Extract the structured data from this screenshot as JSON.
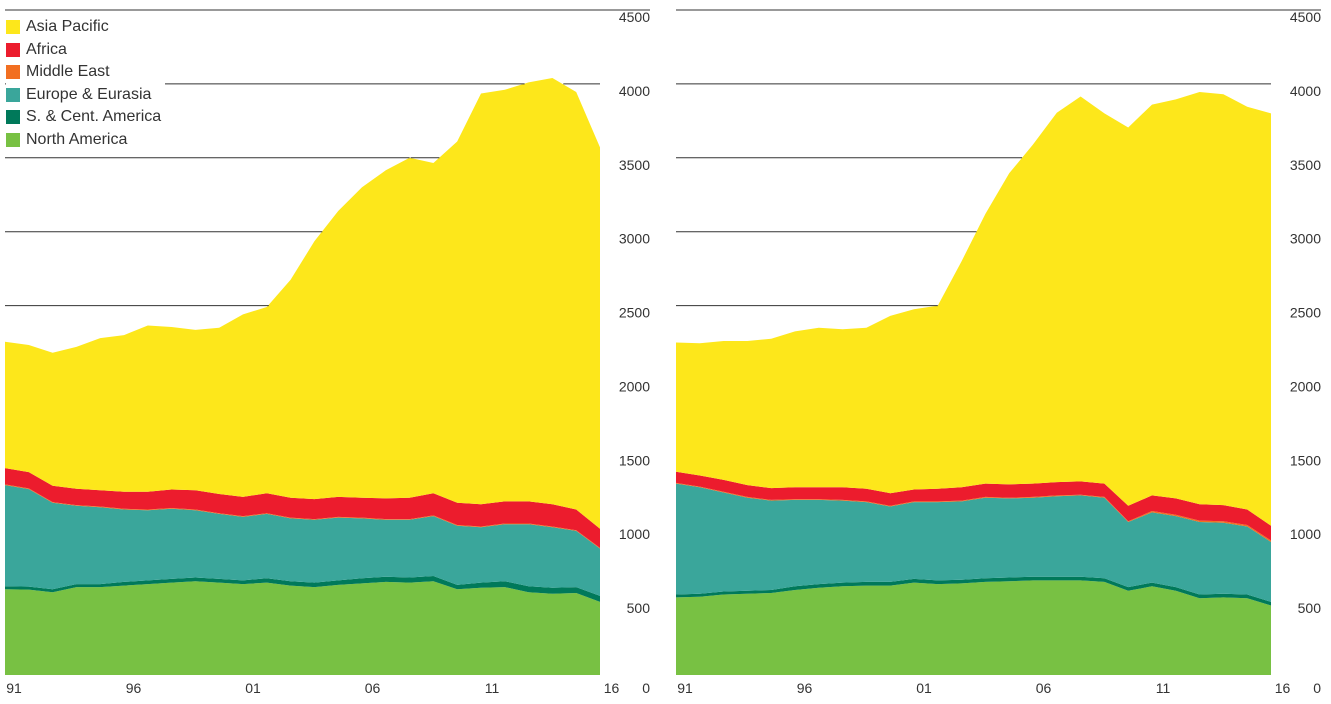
{
  "legend": [
    {
      "name": "Asia Pacific",
      "color": "#fde71b"
    },
    {
      "name": "Africa",
      "color": "#ec1c2d"
    },
    {
      "name": "Middle East",
      "color": "#f26f21"
    },
    {
      "name": "Europe & Eurasia",
      "color": "#3aa69b"
    },
    {
      "name": "S. & Cent. America",
      "color": "#00795a"
    },
    {
      "name": "North America",
      "color": "#78c143"
    }
  ],
  "chart_data": [
    {
      "type": "area",
      "stacked": true,
      "x": [
        1991,
        1992,
        1993,
        1994,
        1995,
        1996,
        1997,
        1998,
        1999,
        2000,
        2001,
        2002,
        2003,
        2004,
        2005,
        2006,
        2007,
        2008,
        2009,
        2010,
        2011,
        2012,
        2013,
        2014,
        2015,
        2016
      ],
      "x_tick_labels": [
        "91",
        "96",
        "01",
        "06",
        "11",
        "16"
      ],
      "y_tick_labels": [
        "0",
        "500",
        "1000",
        "1500",
        "2000",
        "2500",
        "3000",
        "3500",
        "4000",
        "4500"
      ],
      "ylim": [
        0,
        4500
      ],
      "series": [
        {
          "name": "North America",
          "values": [
            580,
            578,
            560,
            595,
            595,
            605,
            615,
            625,
            635,
            625,
            615,
            625,
            605,
            595,
            610,
            620,
            630,
            625,
            635,
            580,
            590,
            595,
            560,
            550,
            555,
            495
          ]
        },
        {
          "name": "S. & Cent. America",
          "values": [
            20,
            20,
            20,
            20,
            20,
            25,
            25,
            25,
            25,
            25,
            25,
            30,
            30,
            30,
            30,
            35,
            35,
            35,
            35,
            30,
            35,
            40,
            40,
            40,
            40,
            40
          ]
        },
        {
          "name": "Europe & Eurasia",
          "values": [
            685,
            660,
            585,
            530,
            520,
            490,
            475,
            475,
            455,
            440,
            430,
            435,
            425,
            425,
            425,
            405,
            385,
            390,
            405,
            400,
            375,
            385,
            420,
            410,
            380,
            320
          ]
        },
        {
          "name": "Middle East",
          "values": [
            5,
            5,
            5,
            5,
            5,
            5,
            5,
            5,
            5,
            5,
            5,
            5,
            5,
            5,
            5,
            5,
            5,
            5,
            5,
            5,
            5,
            5,
            5,
            5,
            5,
            5
          ]
        },
        {
          "name": "Africa",
          "values": [
            110,
            110,
            110,
            110,
            110,
            115,
            120,
            125,
            130,
            130,
            130,
            135,
            135,
            135,
            135,
            135,
            140,
            145,
            150,
            150,
            150,
            150,
            150,
            150,
            140,
            130
          ]
        },
        {
          "name": "Asia Pacific",
          "values": [
            855,
            860,
            900,
            960,
            1030,
            1060,
            1125,
            1100,
            1085,
            1125,
            1235,
            1260,
            1475,
            1745,
            1935,
            2100,
            2220,
            2300,
            2235,
            2445,
            2780,
            2785,
            2835,
            2885,
            2825,
            2580
          ]
        }
      ]
    },
    {
      "type": "area",
      "stacked": true,
      "x": [
        1991,
        1992,
        1993,
        1994,
        1995,
        1996,
        1997,
        1998,
        1999,
        2000,
        2001,
        2002,
        2003,
        2004,
        2005,
        2006,
        2007,
        2008,
        2009,
        2010,
        2011,
        2012,
        2013,
        2014,
        2015,
        2016
      ],
      "x_tick_labels": [
        "91",
        "96",
        "01",
        "06",
        "11",
        "16"
      ],
      "y_tick_labels": [
        "0",
        "500",
        "1000",
        "1500",
        "2000",
        "2500",
        "3000",
        "3500",
        "4000",
        "4500"
      ],
      "ylim": [
        0,
        4500
      ],
      "series": [
        {
          "name": "North America",
          "values": [
            525,
            530,
            545,
            550,
            555,
            575,
            590,
            600,
            605,
            605,
            625,
            615,
            620,
            630,
            635,
            640,
            640,
            640,
            630,
            570,
            600,
            570,
            520,
            525,
            520,
            470
          ]
        },
        {
          "name": "S. & Cent. America",
          "values": [
            20,
            20,
            20,
            20,
            20,
            25,
            25,
            25,
            25,
            25,
            25,
            25,
            25,
            25,
            25,
            25,
            25,
            25,
            25,
            25,
            25,
            25,
            25,
            25,
            25,
            25
          ]
        },
        {
          "name": "Europe & Eurasia",
          "values": [
            750,
            720,
            670,
            630,
            605,
            585,
            570,
            555,
            540,
            510,
            520,
            530,
            530,
            545,
            535,
            535,
            545,
            550,
            545,
            440,
            475,
            480,
            490,
            480,
            460,
            405
          ]
        },
        {
          "name": "Middle East",
          "values": [
            5,
            5,
            5,
            5,
            5,
            5,
            5,
            5,
            5,
            5,
            5,
            5,
            5,
            5,
            5,
            5,
            5,
            5,
            5,
            5,
            10,
            10,
            10,
            10,
            10,
            10
          ]
        },
        {
          "name": "Africa",
          "values": [
            75,
            75,
            80,
            80,
            80,
            80,
            80,
            85,
            85,
            85,
            80,
            85,
            90,
            90,
            90,
            90,
            90,
            90,
            90,
            105,
            105,
            110,
            110,
            110,
            105,
            100
          ]
        },
        {
          "name": "Asia Pacific",
          "values": [
            875,
            895,
            940,
            975,
            1010,
            1055,
            1080,
            1070,
            1090,
            1200,
            1220,
            1240,
            1530,
            1825,
            2105,
            2295,
            2500,
            2605,
            2505,
            2560,
            2645,
            2700,
            2790,
            2780,
            2725,
            2790
          ]
        }
      ]
    }
  ]
}
